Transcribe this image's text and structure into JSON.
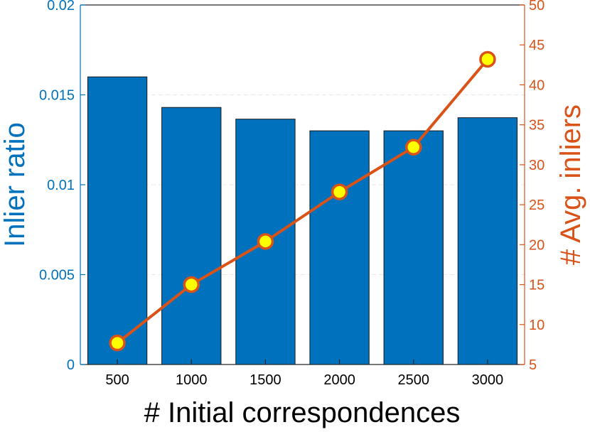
{
  "chart_data": {
    "type": "bar",
    "categories": [
      "500",
      "1000",
      "1500",
      "2000",
      "2500",
      "3000"
    ],
    "xlabel": "# Initial correspondences",
    "ylabel_left": "Inlier ratio",
    "ylabel_right": "# Avg. inliers",
    "ylim_left": [
      0,
      0.02
    ],
    "ylim_right": [
      5,
      50
    ],
    "left_ticks": [
      "0",
      "0.005",
      "0.01",
      "0.015",
      "0.02"
    ],
    "right_ticks": [
      "5",
      "10",
      "15",
      "20",
      "25",
      "30",
      "35",
      "40",
      "45",
      "50"
    ],
    "grid": "horizontal dashed (faint)",
    "series": [
      {
        "axis": "left",
        "type": "bar",
        "values": [
          0.016,
          0.0143,
          0.01365,
          0.013,
          0.013,
          0.01373
        ]
      },
      {
        "axis": "right",
        "type": "line",
        "values": [
          7.7,
          15.0,
          20.4,
          26.6,
          32.2,
          43.2
        ]
      }
    ],
    "colors": {
      "bar_fill": "#0072BD",
      "left_axis": "#0072BD",
      "right_axis": "#D95319",
      "line": "#D95319",
      "marker_fill": "#FFFF00",
      "grid": "#E8E8E8"
    }
  }
}
